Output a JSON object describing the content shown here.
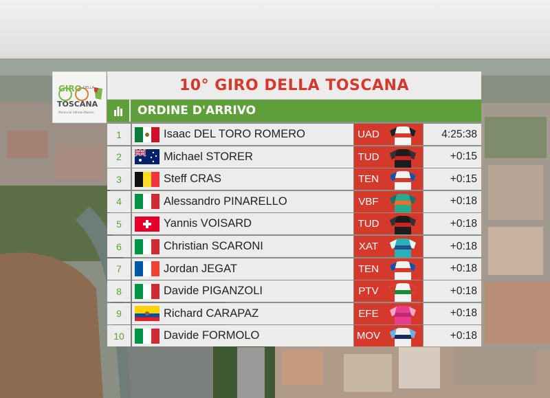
{
  "header": {
    "title": "10° GIRO DELLA TOSCANA",
    "subtitle": "ORDINE D'ARRIVO"
  },
  "logo": {
    "line1": "GIRO",
    "line2": "DELLA",
    "line3": "TOSCANA",
    "line4": "Memorial Alfredo Martini"
  },
  "colors": {
    "accent_red": "#d5392b",
    "accent_green": "#5f9f3a",
    "panel_grey": "#ececec"
  },
  "results": [
    {
      "pos": "1",
      "flag": "mexico",
      "name": "Isaac DEL TORO ROMERO",
      "team": "UAD",
      "jersey": "white-red-black",
      "time": "4:25:38"
    },
    {
      "pos": "2",
      "flag": "australia",
      "name": "Michael STORER",
      "team": "TUD",
      "jersey": "black-red",
      "time": "+0:15"
    },
    {
      "pos": "3",
      "flag": "belgium",
      "name": "Steff CRAS",
      "team": "TEN",
      "jersey": "white-red-blue",
      "time": "+0:15"
    },
    {
      "pos": "4",
      "flag": "italy",
      "name": "Alessandro PINARELLO",
      "team": "VBF",
      "jersey": "teal-orange",
      "time": "+0:18"
    },
    {
      "pos": "5",
      "flag": "switzerland",
      "name": "Yannis VOISARD",
      "team": "TUD",
      "jersey": "black-red",
      "time": "+0:18"
    },
    {
      "pos": "6",
      "flag": "italy",
      "name": "Christian SCARONI",
      "team": "XAT",
      "jersey": "teal-blue",
      "time": "+0:18"
    },
    {
      "pos": "7",
      "flag": "france",
      "name": "Jordan JEGAT",
      "team": "TEN",
      "jersey": "white-red-blue",
      "time": "+0:18"
    },
    {
      "pos": "8",
      "flag": "italy",
      "name": "Davide PIGANZOLI",
      "team": "PTV",
      "jersey": "green-white-red",
      "time": "+0:18"
    },
    {
      "pos": "9",
      "flag": "ecuador",
      "name": "Richard CARAPAZ",
      "team": "EFE",
      "jersey": "pink",
      "time": "+0:18"
    },
    {
      "pos": "10",
      "flag": "italy",
      "name": "Davide FORMOLO",
      "team": "MOV",
      "jersey": "navy-white",
      "time": "+0:18"
    }
  ]
}
